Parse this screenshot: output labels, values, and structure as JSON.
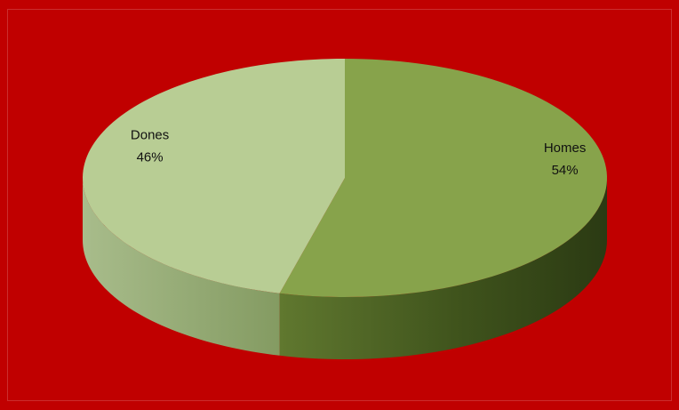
{
  "chart_data": {
    "type": "pie",
    "style": "3d",
    "categories": [
      "Homes",
      "Dones"
    ],
    "values": [
      54,
      46
    ],
    "labels": [
      {
        "name": "Homes",
        "percent": "54%"
      },
      {
        "name": "Dones",
        "percent": "46%"
      }
    ],
    "colors": {
      "background": "#c00000",
      "Homes_top": "#87a34b",
      "Dones_top": "#b8cd94",
      "Homes_side": "#4b6224",
      "Dones_side": "#98ad79"
    },
    "legend": "none"
  }
}
